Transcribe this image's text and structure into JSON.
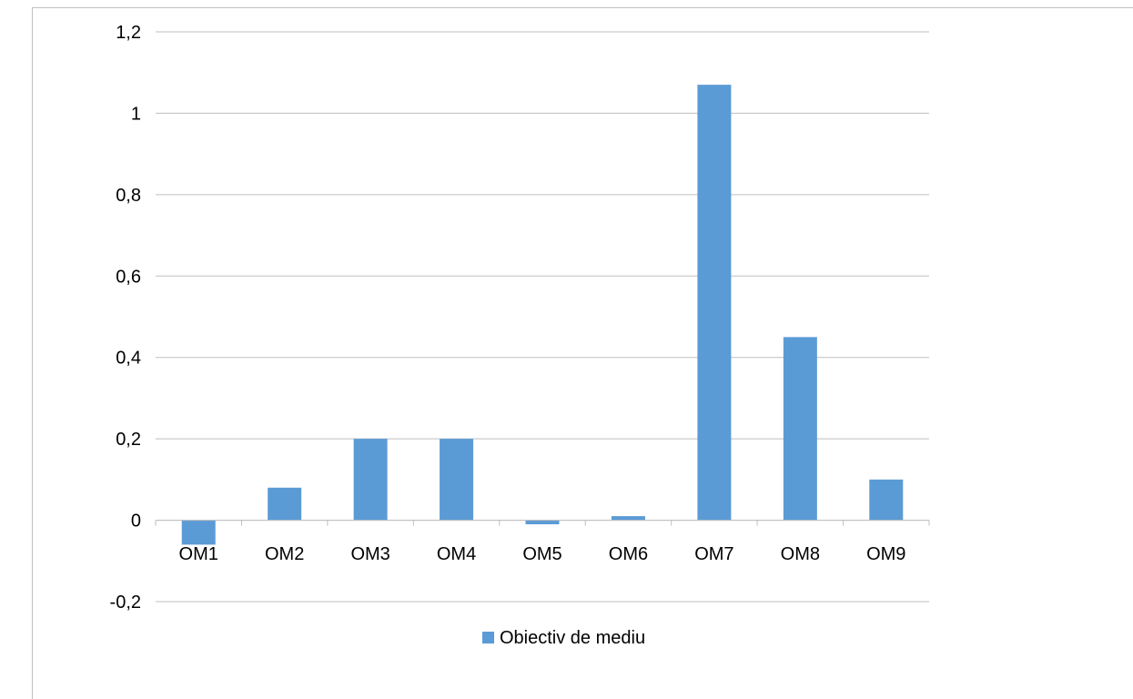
{
  "chart_data": {
    "type": "bar",
    "categories": [
      "OM1",
      "OM2",
      "OM3",
      "OM4",
      "OM5",
      "OM6",
      "OM7",
      "OM8",
      "OM9"
    ],
    "series": [
      {
        "name": "Obiectiv de mediu",
        "values": [
          -0.06,
          0.08,
          0.2,
          0.2,
          -0.01,
          0.01,
          1.07,
          0.45,
          0.1
        ],
        "color": "#5b9bd5"
      }
    ],
    "ylim": [
      -0.2,
      1.2
    ],
    "yticks": [
      -0.2,
      0,
      0.2,
      0.4,
      0.6,
      0.8,
      1,
      1.2
    ],
    "ytick_labels": [
      "-0,2",
      "0",
      "0,2",
      "0,4",
      "0,6",
      "0,8",
      "1",
      "1,2"
    ],
    "grid": true,
    "legend_position": "bottom",
    "gridline_color": "#bfbfbf",
    "axis_color": "#bfbfbf"
  }
}
